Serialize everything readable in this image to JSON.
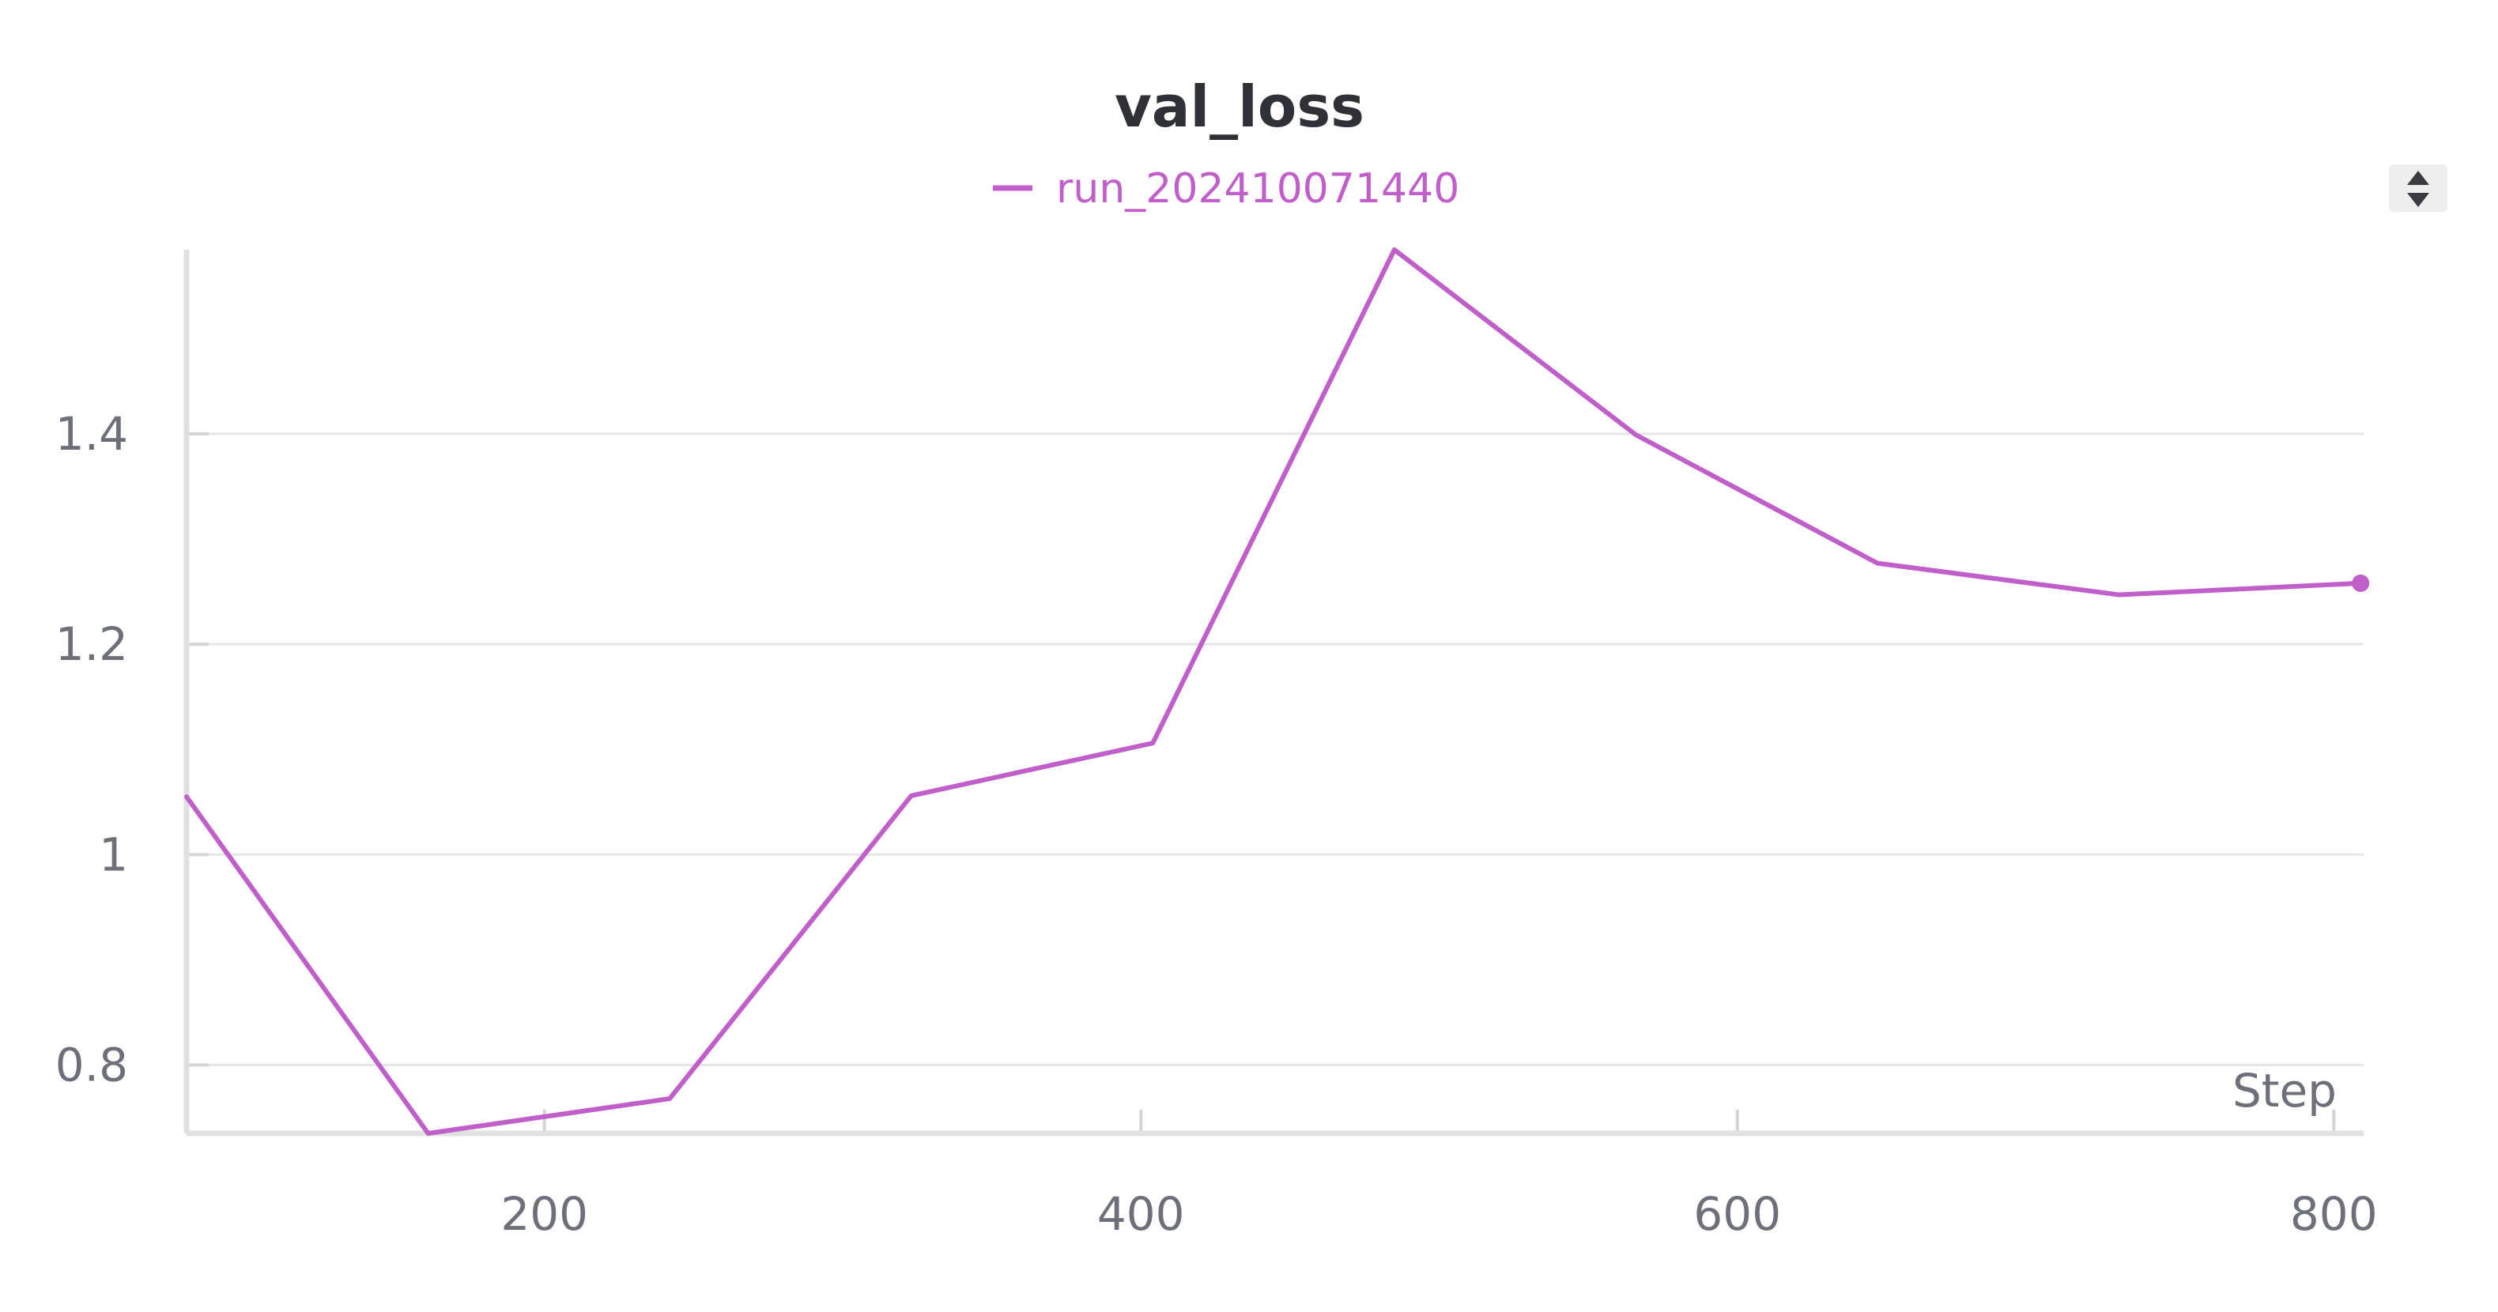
{
  "chart_data": {
    "type": "line",
    "title": "val_loss",
    "xlabel": "Step",
    "ylabel": "",
    "xlim": [
      80,
      810
    ],
    "ylim": [
      0.735,
      1.575
    ],
    "x_ticks": [
      {
        "value": 200,
        "label": "200"
      },
      {
        "value": 400,
        "label": "400"
      },
      {
        "value": 600,
        "label": "600"
      },
      {
        "value": 800,
        "label": "800"
      }
    ],
    "y_ticks": [
      {
        "value": 0.8,
        "label": "0.8"
      },
      {
        "value": 1.0,
        "label": "1"
      },
      {
        "value": 1.2,
        "label": "1.2"
      },
      {
        "value": 1.4,
        "label": "1.4"
      }
    ],
    "grid": true,
    "legend_position": "top-center",
    "series": [
      {
        "name": "run_202410071440",
        "color": "#c05fc9",
        "x": [
          80,
          161,
          242,
          323,
          404,
          485,
          566,
          647,
          728,
          809
        ],
        "y": [
          1.055,
          0.735,
          0.768,
          1.056,
          1.106,
          1.575,
          1.399,
          1.277,
          1.247,
          1.258
        ]
      }
    ]
  },
  "controls": {
    "sort_icon": "sort-up-down-icon"
  }
}
